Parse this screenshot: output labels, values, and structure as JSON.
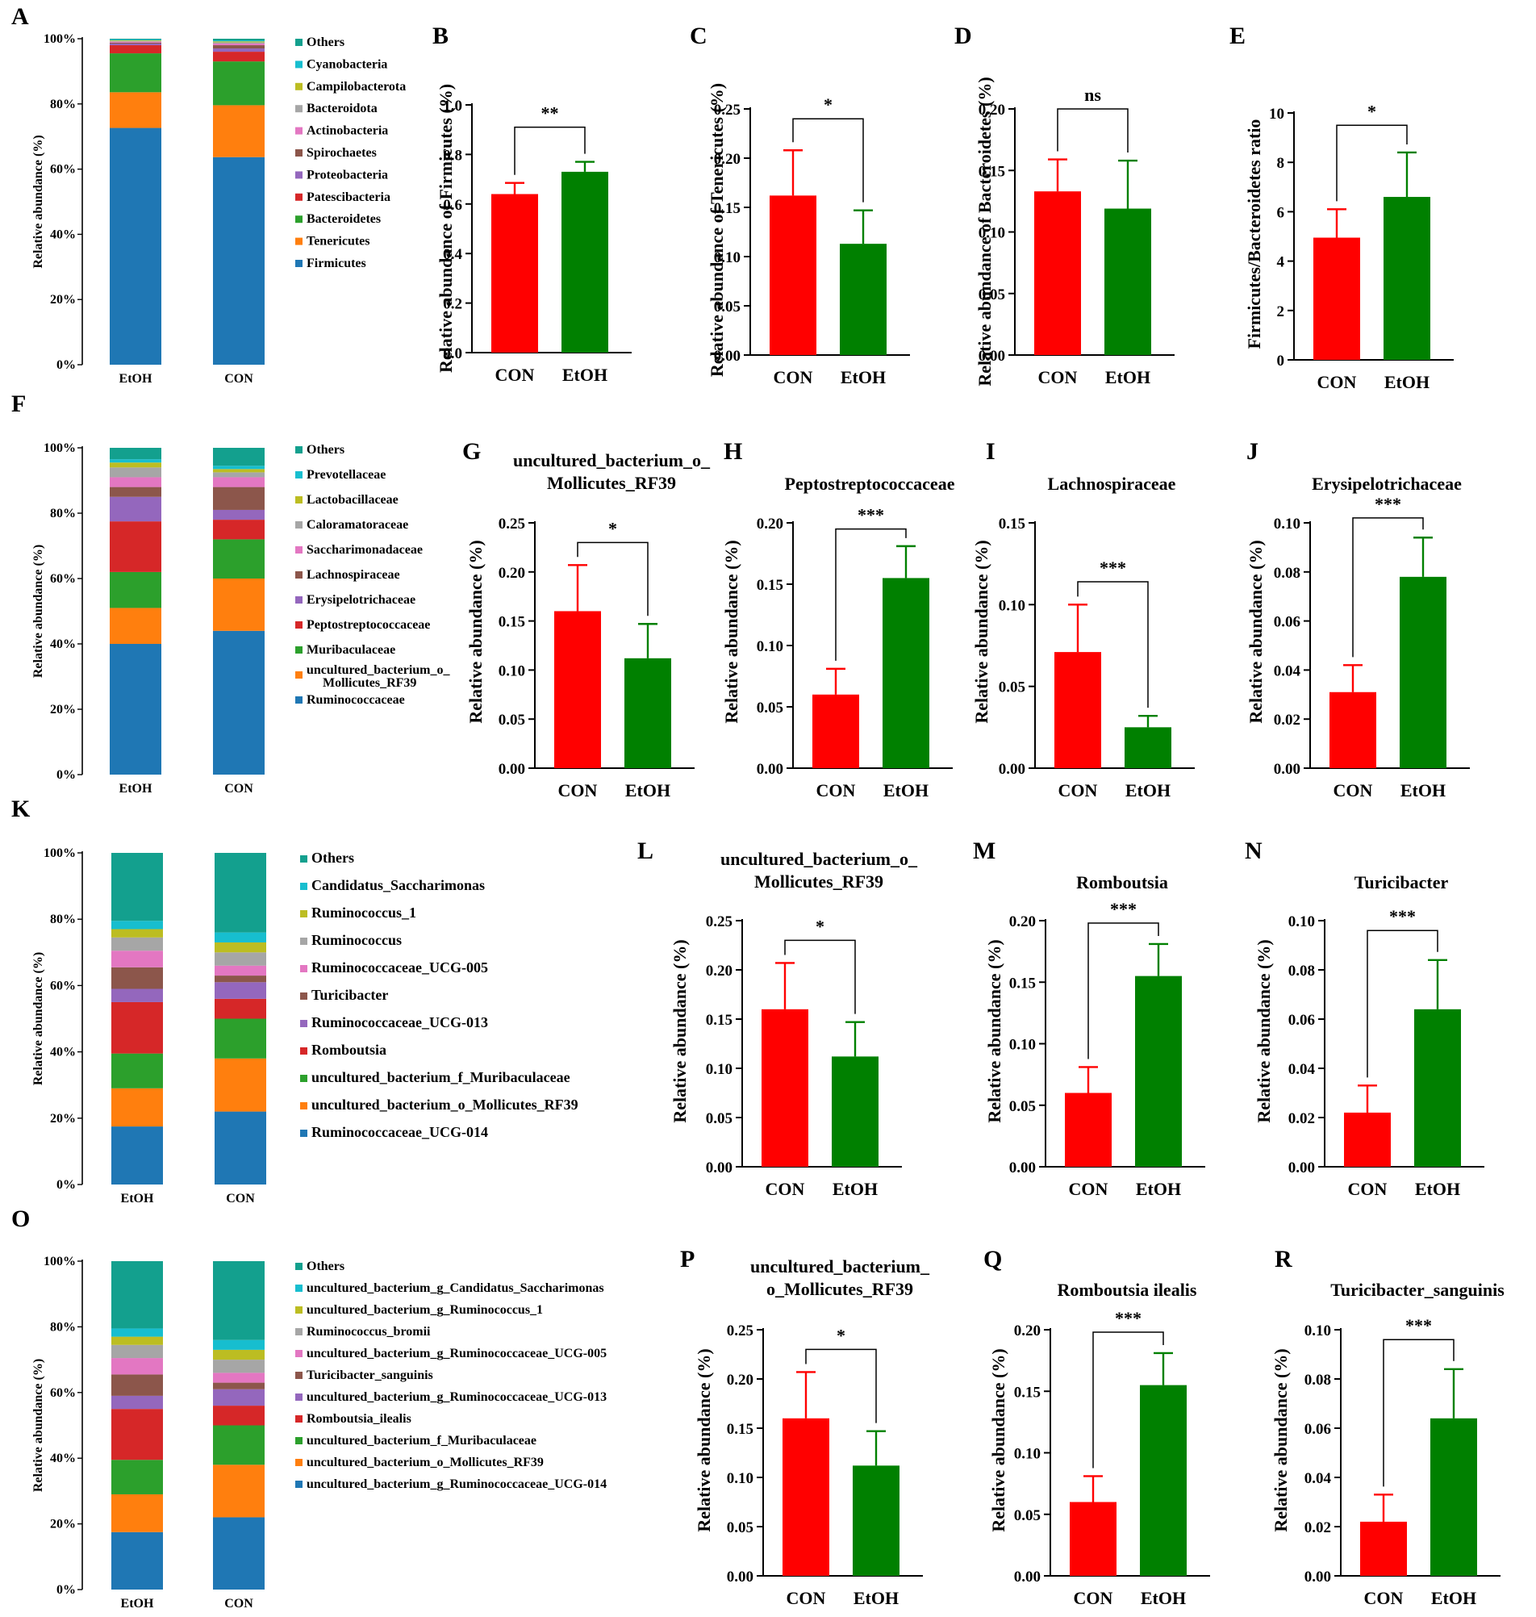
{
  "figure": {
    "colors": {
      "CON": "#ff0000",
      "EtOH": "#008000",
      "Firmicutes": "#1f77b4",
      "Tenericutes": "#ff7f0e",
      "Bacteroidetes": "#2ca02c",
      "Patescibacteria": "#d62728",
      "Proteobacteria": "#9467bd",
      "Spirochaetes": "#8c564b",
      "Actinobacteria": "#e377c2",
      "Bacteroidota": "#a6a6a6",
      "Campilobacterota": "#bcbd22",
      "Cyanobacteria": "#17becf",
      "Others": "#13a08e"
    }
  },
  "chart_data": [
    {
      "id": "A",
      "type": "stacked_bar",
      "ylabel": "Relative abundance (%)",
      "yticks": [
        "0%",
        "20%",
        "40%",
        "60%",
        "80%",
        "100%"
      ],
      "categories": [
        "EtOH",
        "CON"
      ],
      "legend": [
        "Others",
        "Cyanobacteria",
        "Campilobacterota",
        "Bacteroidota",
        "Actinobacteria",
        "Spirochaetes",
        "Proteobacteria",
        "Patescibacteria",
        "Bacteroidetes",
        "Tenericutes",
        "Firmicutes"
      ],
      "colors": [
        "#13a08e",
        "#17becf",
        "#bcbd22",
        "#a6a6a6",
        "#e377c2",
        "#8c564b",
        "#9467bd",
        "#d62728",
        "#2ca02c",
        "#ff7f0e",
        "#1f77b4"
      ],
      "series": [
        {
          "name": "Firmicutes",
          "values": [
            73,
            64
          ]
        },
        {
          "name": "Tenericutes",
          "values": [
            11,
            16
          ]
        },
        {
          "name": "Bacteroidetes",
          "values": [
            12,
            13.5
          ]
        },
        {
          "name": "Patescibacteria",
          "values": [
            2.5,
            3
          ]
        },
        {
          "name": "Proteobacteria",
          "values": [
            0.5,
            1
          ]
        },
        {
          "name": "Spirochaetes",
          "values": [
            0.3,
            1
          ]
        },
        {
          "name": "Actinobacteria",
          "values": [
            0.3,
            0.5
          ]
        },
        {
          "name": "Bacteroidota",
          "values": [
            0.2,
            0.4
          ]
        },
        {
          "name": "Campilobacterota",
          "values": [
            0.2,
            0.3
          ]
        },
        {
          "name": "Cyanobacteria",
          "values": [
            0.2,
            0.3
          ]
        },
        {
          "name": "Others",
          "values": [
            0.3,
            0.5
          ]
        }
      ]
    },
    {
      "id": "B",
      "type": "bar",
      "title": [],
      "ylabel": "Relative abundance of Firmicutes (%)",
      "yticks": [
        "0.0",
        "0.2",
        "0.4",
        "0.6",
        "0.8",
        "1.0"
      ],
      "ylim": [
        0,
        1.0
      ],
      "categories": [
        "CON",
        "EtOH"
      ],
      "values": [
        0.64,
        0.73
      ],
      "errors": [
        0.045,
        0.04
      ],
      "sig": "**",
      "bracket_top": 0.91
    },
    {
      "id": "C",
      "type": "bar",
      "title": [],
      "ylabel": "Relative abundance of Tenericutes (%)",
      "yticks": [
        "0.00",
        "0.05",
        "0.10",
        "0.15",
        "0.20",
        "0.25"
      ],
      "ylim": [
        0,
        0.25
      ],
      "categories": [
        "CON",
        "EtOH"
      ],
      "values": [
        0.162,
        0.113
      ],
      "errors": [
        0.046,
        0.034
      ],
      "sig": "*",
      "bracket_top": 0.24
    },
    {
      "id": "D",
      "type": "bar",
      "title": [],
      "ylabel": "Relative abundance of Bacteroidetes (%)",
      "yticks": [
        "0.00",
        "0.05",
        "0.10",
        "0.15",
        "0.20"
      ],
      "ylim": [
        0,
        0.2
      ],
      "categories": [
        "CON",
        "EtOH"
      ],
      "values": [
        0.133,
        0.119
      ],
      "errors": [
        0.026,
        0.039
      ],
      "sig": "ns",
      "bracket_top": 0.2
    },
    {
      "id": "E",
      "type": "bar",
      "title": [],
      "ylabel": "Firmicutes/Bacteroidetes ratio",
      "yticks": [
        "0",
        "2",
        "4",
        "6",
        "8",
        "10"
      ],
      "ylim": [
        0,
        10
      ],
      "categories": [
        "CON",
        "EtOH"
      ],
      "values": [
        4.95,
        6.6
      ],
      "errors": [
        1.15,
        1.8
      ],
      "sig": "*",
      "bracket_top": 9.5
    },
    {
      "id": "F",
      "type": "stacked_bar",
      "ylabel": "Relative abundance (%)",
      "yticks": [
        "0%",
        "20%",
        "40%",
        "60%",
        "80%",
        "100%"
      ],
      "categories": [
        "EtOH",
        "CON"
      ],
      "legend": [
        "Others",
        "Prevotellaceae",
        "Lactobacillaceae",
        "Caloramatoraceae",
        "Saccharimonadaceae",
        "Lachnospiraceae",
        "Erysipelotrichaceae",
        "Peptostreptococcaceae",
        "Muribaculaceae",
        "uncultured_bacterium_o_\nMollicutes_RF39",
        "Ruminococcaceae"
      ],
      "colors": [
        "#13a08e",
        "#17becf",
        "#bcbd22",
        "#a6a6a6",
        "#e377c2",
        "#8c564b",
        "#9467bd",
        "#d62728",
        "#2ca02c",
        "#ff7f0e",
        "#1f77b4"
      ],
      "series": [
        {
          "name": "Ruminococcaceae",
          "values": [
            40,
            44
          ]
        },
        {
          "name": "uncultured_bacterium_o_Mollicutes_RF39",
          "values": [
            11,
            16
          ]
        },
        {
          "name": "Muribaculaceae",
          "values": [
            11,
            12
          ]
        },
        {
          "name": "Peptostreptococcaceae",
          "values": [
            15.5,
            6
          ]
        },
        {
          "name": "Erysipelotrichaceae",
          "values": [
            7.5,
            3
          ]
        },
        {
          "name": "Lachnospiraceae",
          "values": [
            3,
            7
          ]
        },
        {
          "name": "Saccharimonadaceae",
          "values": [
            3,
            3
          ]
        },
        {
          "name": "Caloramatoraceae",
          "values": [
            3,
            1.5
          ]
        },
        {
          "name": "Lactobacillaceae",
          "values": [
            1.5,
            1
          ]
        },
        {
          "name": "Prevotellaceae",
          "values": [
            1,
            1
          ]
        },
        {
          "name": "Others",
          "values": [
            3.5,
            5.5
          ]
        }
      ]
    },
    {
      "id": "G",
      "type": "bar",
      "title": [
        "uncultured_bacterium_o_",
        "Mollicutes_RF39"
      ],
      "ylabel": "Relative abundance (%)",
      "yticks": [
        "0.00",
        "0.05",
        "0.10",
        "0.15",
        "0.20",
        "0.25"
      ],
      "ylim": [
        0,
        0.25
      ],
      "categories": [
        "CON",
        "EtOH"
      ],
      "values": [
        0.16,
        0.112
      ],
      "errors": [
        0.047,
        0.035
      ],
      "sig": "*",
      "bracket_top": 0.23
    },
    {
      "id": "H",
      "type": "bar",
      "title": [
        "Peptostreptococcaceae"
      ],
      "ylabel": "Relative abundance (%)",
      "yticks": [
        "0.00",
        "0.05",
        "0.10",
        "0.15",
        "0.20"
      ],
      "ylim": [
        0,
        0.2
      ],
      "categories": [
        "CON",
        "EtOH"
      ],
      "values": [
        0.06,
        0.155
      ],
      "errors": [
        0.021,
        0.026
      ],
      "sig": "***",
      "bracket_top": 0.195
    },
    {
      "id": "I",
      "type": "bar",
      "title": [
        "Lachnospiraceae"
      ],
      "ylabel": "Relative abundance (%)",
      "yticks": [
        "0.00",
        "0.05",
        "0.10",
        "0.15"
      ],
      "ylim": [
        0,
        0.15
      ],
      "categories": [
        "CON",
        "EtOH"
      ],
      "values": [
        0.071,
        0.025
      ],
      "errors": [
        0.029,
        0.007
      ],
      "sig": "***",
      "bracket_top": 0.114
    },
    {
      "id": "J",
      "type": "bar",
      "title": [
        "Erysipelotrichaceae"
      ],
      "ylabel": "Relative abundance (%)",
      "yticks": [
        "0.00",
        "0.02",
        "0.04",
        "0.06",
        "0.08",
        "0.10"
      ],
      "ylim": [
        0,
        0.1
      ],
      "categories": [
        "CON",
        "EtOH"
      ],
      "values": [
        0.031,
        0.078
      ],
      "errors": [
        0.011,
        0.016
      ],
      "sig": "***",
      "bracket_top": 0.102
    },
    {
      "id": "K",
      "type": "stacked_bar",
      "ylabel": "Relative abundance (%)",
      "yticks": [
        "0%",
        "20%",
        "40%",
        "60%",
        "80%",
        "100%"
      ],
      "categories": [
        "EtOH",
        "CON"
      ],
      "legend": [
        "Others",
        "Candidatus_Saccharimonas",
        "Ruminococcus_1",
        "Ruminococcus",
        "Ruminococcaceae_UCG-005",
        "Turicibacter",
        "Ruminococcaceae_UCG-013",
        "Romboutsia",
        "uncultured_bacterium_f_Muribaculaceae",
        "uncultured_bacterium_o_Mollicutes_RF39",
        "Ruminococcaceae_UCG-014"
      ],
      "colors": [
        "#13a08e",
        "#17becf",
        "#bcbd22",
        "#a6a6a6",
        "#e377c2",
        "#8c564b",
        "#9467bd",
        "#d62728",
        "#2ca02c",
        "#ff7f0e",
        "#1f77b4"
      ],
      "series": [
        {
          "name": "Ruminococcaceae_UCG-014",
          "values": [
            17.5,
            22
          ]
        },
        {
          "name": "uncultured_bacterium_o_Mollicutes_RF39",
          "values": [
            11.5,
            16
          ]
        },
        {
          "name": "uncultured_bacterium_f_Muribaculaceae",
          "values": [
            10.5,
            12
          ]
        },
        {
          "name": "Romboutsia",
          "values": [
            15.5,
            6
          ]
        },
        {
          "name": "Ruminococcaceae_UCG-013",
          "values": [
            4,
            5
          ]
        },
        {
          "name": "Turicibacter",
          "values": [
            6.5,
            2
          ]
        },
        {
          "name": "Ruminococcaceae_UCG-005",
          "values": [
            5,
            3
          ]
        },
        {
          "name": "Ruminococcus",
          "values": [
            4,
            4
          ]
        },
        {
          "name": "Ruminococcus_1",
          "values": [
            2.5,
            3
          ]
        },
        {
          "name": "Candidatus_Saccharimonas",
          "values": [
            2.5,
            3
          ]
        },
        {
          "name": "Others",
          "values": [
            20.5,
            24
          ]
        }
      ]
    },
    {
      "id": "L",
      "type": "bar",
      "title": [
        "uncultured_bacterium_o_",
        "Mollicutes_RF39"
      ],
      "ylabel": "Relative abundance (%)",
      "yticks": [
        "0.00",
        "0.05",
        "0.10",
        "0.15",
        "0.20",
        "0.25"
      ],
      "ylim": [
        0,
        0.25
      ],
      "categories": [
        "CON",
        "EtOH"
      ],
      "values": [
        0.16,
        0.112
      ],
      "errors": [
        0.047,
        0.035
      ],
      "sig": "*",
      "bracket_top": 0.23
    },
    {
      "id": "M",
      "type": "bar",
      "title": [
        "Romboutsia"
      ],
      "ylabel": "Relative abundance (%)",
      "yticks": [
        "0.00",
        "0.05",
        "0.10",
        "0.15",
        "0.20"
      ],
      "ylim": [
        0,
        0.2
      ],
      "categories": [
        "CON",
        "EtOH"
      ],
      "values": [
        0.06,
        0.155
      ],
      "errors": [
        0.021,
        0.026
      ],
      "sig": "***",
      "bracket_top": 0.198
    },
    {
      "id": "N",
      "type": "bar",
      "title": [
        "Turicibacter"
      ],
      "ylabel": "Relative abundance (%)",
      "yticks": [
        "0.00",
        "0.02",
        "0.04",
        "0.06",
        "0.08",
        "0.10"
      ],
      "ylim": [
        0,
        0.1
      ],
      "categories": [
        "CON",
        "EtOH"
      ],
      "values": [
        0.022,
        0.064
      ],
      "errors": [
        0.011,
        0.02
      ],
      "sig": "***",
      "bracket_top": 0.096
    },
    {
      "id": "O",
      "type": "stacked_bar",
      "ylabel": "Relative abundance (%)",
      "yticks": [
        "0%",
        "20%",
        "40%",
        "60%",
        "80%",
        "100%"
      ],
      "categories": [
        "EtOH",
        "CON"
      ],
      "legend": [
        "Others",
        "uncultured_bacterium_g_Candidatus_Saccharimonas",
        "uncultured_bacterium_g_Ruminococcus_1",
        "Ruminococcus_bromii",
        "uncultured_bacterium_g_Ruminococcaceae_UCG-005",
        "Turicibacter_sanguinis",
        "uncultured_bacterium_g_Ruminococcaceae_UCG-013",
        "Romboutsia_ilealis",
        "uncultured_bacterium_f_Muribaculaceae",
        "uncultured_bacterium_o_Mollicutes_RF39",
        "uncultured_bacterium_g_Ruminococcaceae_UCG-014"
      ],
      "colors": [
        "#13a08e",
        "#17becf",
        "#bcbd22",
        "#a6a6a6",
        "#e377c2",
        "#8c564b",
        "#9467bd",
        "#d62728",
        "#2ca02c",
        "#ff7f0e",
        "#1f77b4"
      ],
      "series": [
        {
          "name": "uncultured_bacterium_g_Ruminococcaceae_UCG-014",
          "values": [
            17.5,
            22
          ]
        },
        {
          "name": "uncultured_bacterium_o_Mollicutes_RF39",
          "values": [
            11.5,
            16
          ]
        },
        {
          "name": "uncultured_bacterium_f_Muribaculaceae",
          "values": [
            10.5,
            12
          ]
        },
        {
          "name": "Romboutsia_ilealis",
          "values": [
            15.5,
            6
          ]
        },
        {
          "name": "uncultured_bacterium_g_Ruminococcaceae_UCG-013",
          "values": [
            4,
            5
          ]
        },
        {
          "name": "Turicibacter_sanguinis",
          "values": [
            6.5,
            2
          ]
        },
        {
          "name": "uncultured_bacterium_g_Ruminococcaceae_UCG-005",
          "values": [
            5,
            3
          ]
        },
        {
          "name": "Ruminococcus_bromii",
          "values": [
            4,
            4
          ]
        },
        {
          "name": "uncultured_bacterium_g_Ruminococcus_1",
          "values": [
            2.5,
            3
          ]
        },
        {
          "name": "uncultured_bacterium_g_Candidatus_Saccharimonas",
          "values": [
            2.5,
            3
          ]
        },
        {
          "name": "Others",
          "values": [
            20.5,
            24
          ]
        }
      ]
    },
    {
      "id": "P",
      "type": "bar",
      "title": [
        "uncultured_bacterium_",
        "o_Mollicutes_RF39"
      ],
      "ylabel": "Relative abundance (%)",
      "yticks": [
        "0.00",
        "0.05",
        "0.10",
        "0.15",
        "0.20",
        "0.25"
      ],
      "ylim": [
        0,
        0.25
      ],
      "categories": [
        "CON",
        "EtOH"
      ],
      "values": [
        0.16,
        0.112
      ],
      "errors": [
        0.047,
        0.035
      ],
      "sig": "*",
      "bracket_top": 0.23
    },
    {
      "id": "Q",
      "type": "bar",
      "title": [
        "Romboutsia ilealis"
      ],
      "ylabel": "Relative abundance (%)",
      "yticks": [
        "0.00",
        "0.05",
        "0.10",
        "0.15",
        "0.20"
      ],
      "ylim": [
        0,
        0.2
      ],
      "categories": [
        "CON",
        "EtOH"
      ],
      "values": [
        0.06,
        0.155
      ],
      "errors": [
        0.021,
        0.026
      ],
      "sig": "***",
      "bracket_top": 0.198
    },
    {
      "id": "R",
      "type": "bar",
      "title": [
        "Turicibacter_sanguinis"
      ],
      "ylabel": "Relative abundance (%)",
      "yticks": [
        "0.00",
        "0.02",
        "0.04",
        "0.06",
        "0.08",
        "0.10"
      ],
      "ylim": [
        0,
        0.1
      ],
      "categories": [
        "CON",
        "EtOH"
      ],
      "values": [
        0.022,
        0.064
      ],
      "errors": [
        0.011,
        0.02
      ],
      "sig": "***",
      "bracket_top": 0.096
    }
  ]
}
